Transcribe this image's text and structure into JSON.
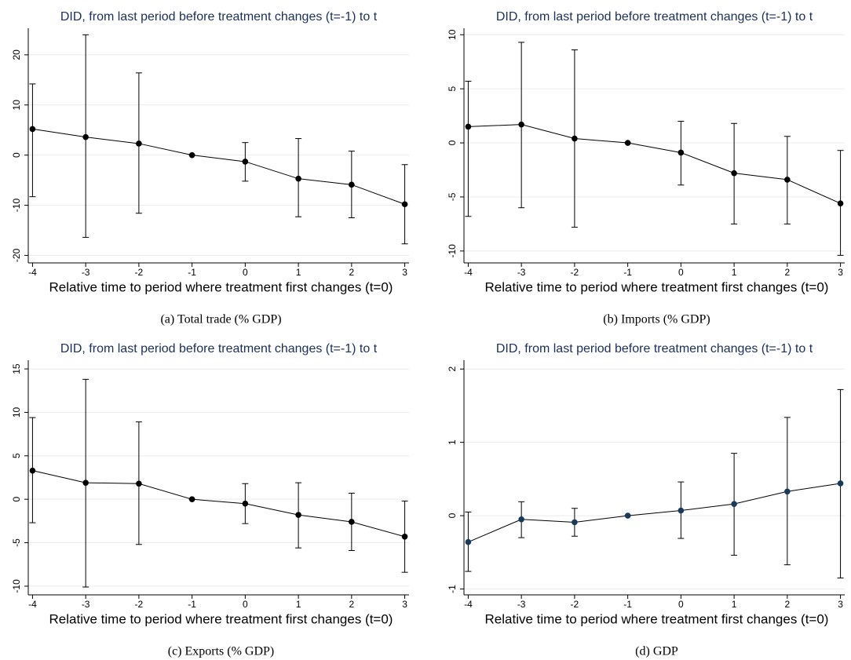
{
  "chart_data": [
    {
      "type": "errorbar",
      "title": "DID, from last period before treatment changes (t=-1) to t",
      "xlabel": "Relative time to period where treatment first changes (t=0)",
      "caption": "(a) Total trade (% GDP)",
      "x": [
        -4,
        -3,
        -2,
        -1,
        0,
        1,
        2,
        3
      ],
      "values": [
        5.2,
        3.6,
        2.3,
        0,
        -1.3,
        -4.7,
        -5.9,
        -9.8
      ],
      "ci_lower": [
        -8.3,
        -16.4,
        -11.6,
        0,
        -5.2,
        -12.3,
        -12.5,
        -17.7
      ],
      "ci_upper": [
        14.2,
        24,
        16.4,
        0,
        2.5,
        3.3,
        0.8,
        -1.9
      ],
      "xlim": [
        -4.08,
        3.08
      ],
      "xticks": [
        -4,
        -3,
        -2,
        -1,
        0,
        1,
        2,
        3
      ],
      "ylim": [
        -21.5,
        25.3
      ],
      "yticks": [
        -20,
        -10,
        0,
        10,
        20
      ],
      "grid": true,
      "color": "#000000"
    },
    {
      "type": "errorbar",
      "title": "DID, from last period before treatment changes (t=-1) to t",
      "xlabel": "Relative time to period where treatment first changes (t=0)",
      "caption": "(b) Imports (% GDP)",
      "x": [
        -4,
        -3,
        -2,
        -1,
        0,
        1,
        2,
        3
      ],
      "values": [
        1.5,
        1.7,
        0.4,
        0,
        -0.9,
        -2.8,
        -3.4,
        -5.6
      ],
      "ci_lower": [
        -6.8,
        -6.0,
        -7.8,
        0,
        -3.9,
        -7.5,
        -7.5,
        -10.4
      ],
      "ci_upper": [
        5.7,
        9.3,
        8.6,
        0,
        2.0,
        1.8,
        0.6,
        -0.7
      ],
      "xlim": [
        -4.08,
        3.08
      ],
      "xticks": [
        -4,
        -3,
        -2,
        -1,
        0,
        1,
        2,
        3
      ],
      "ylim": [
        -11.1,
        10.6
      ],
      "yticks": [
        -10,
        -5,
        0,
        5,
        10
      ],
      "grid": true,
      "color": "#000000"
    },
    {
      "type": "errorbar",
      "title": "DID, from last period before treatment changes (t=-1) to t",
      "xlabel": "Relative time to period where treatment first changes (t=0)",
      "caption": "(c) Exports (% GDP)",
      "x": [
        -4,
        -3,
        -2,
        -1,
        0,
        1,
        2,
        3
      ],
      "values": [
        3.3,
        1.9,
        1.8,
        0,
        -0.5,
        -1.8,
        -2.6,
        -4.3
      ],
      "ci_lower": [
        -2.7,
        -10.1,
        -5.2,
        0,
        -2.8,
        -5.6,
        -5.9,
        -8.4
      ],
      "ci_upper": [
        9.4,
        13.8,
        8.9,
        0,
        1.8,
        1.9,
        0.7,
        -0.2
      ],
      "xlim": [
        -4.08,
        3.08
      ],
      "xticks": [
        -4,
        -3,
        -2,
        -1,
        0,
        1,
        2,
        3
      ],
      "ylim": [
        -11,
        16
      ],
      "yticks": [
        -10,
        -5,
        0,
        5,
        10,
        15
      ],
      "grid": true,
      "color": "#000000"
    },
    {
      "type": "errorbar",
      "title": "DID, from last period before treatment changes (t=-1) to t",
      "xlabel": "Relative time to period where treatment first changes (t=0)",
      "caption": "(d) GDP",
      "x": [
        -4,
        -3,
        -2,
        -1,
        0,
        1,
        2,
        3
      ],
      "values": [
        -0.36,
        -0.05,
        -0.09,
        0,
        0.07,
        0.16,
        0.33,
        0.44
      ],
      "ci_lower": [
        -0.76,
        -0.3,
        -0.28,
        0,
        -0.31,
        -0.54,
        -0.67,
        -0.85
      ],
      "ci_upper": [
        0.05,
        0.19,
        0.1,
        0,
        0.46,
        0.85,
        1.34,
        1.72
      ],
      "xlim": [
        -4.08,
        3.08
      ],
      "xticks": [
        -4,
        -3,
        -2,
        -1,
        0,
        1,
        2,
        3
      ],
      "ylim": [
        -1.08,
        2.12
      ],
      "yticks": [
        -1,
        0,
        1,
        2
      ],
      "grid": true,
      "color": "#1a3a5c"
    }
  ]
}
